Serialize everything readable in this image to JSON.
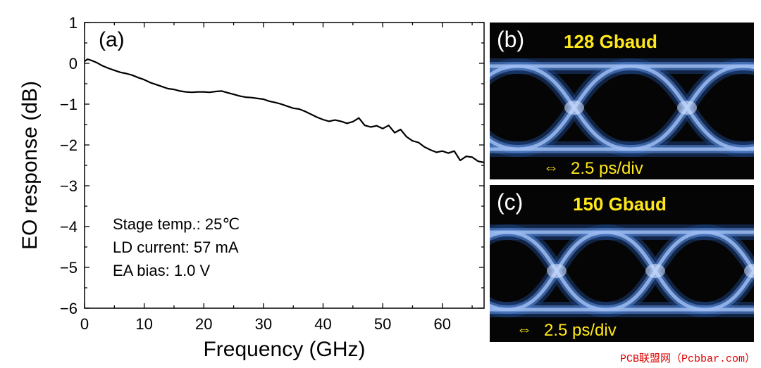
{
  "chart_data": {
    "type": "line",
    "panel_label": "(a)",
    "xlabel": "Frequency (GHz)",
    "ylabel": "EO response (dB)",
    "xlim": [
      0,
      67
    ],
    "ylim": [
      -6,
      1
    ],
    "xticks": [
      0,
      10,
      20,
      30,
      40,
      50,
      60
    ],
    "yticks": [
      1,
      0,
      -1,
      -2,
      -3,
      -4,
      -5,
      -6
    ],
    "ytick_labels": [
      "1",
      "0",
      "−1",
      "−2",
      "−3",
      "−4",
      "−5",
      "−6"
    ],
    "series": [
      {
        "name": "EO response",
        "x": [
          0,
          0.5,
          1,
          2,
          3,
          4,
          5,
          6,
          7,
          8,
          9,
          10,
          11,
          12,
          13,
          14,
          15,
          16,
          17,
          18,
          19,
          20,
          21,
          22,
          23,
          24,
          25,
          26,
          27,
          28,
          29,
          30,
          31,
          32,
          33,
          34,
          35,
          36,
          37,
          38,
          39,
          40,
          41,
          42,
          43,
          44,
          45,
          46,
          47,
          48,
          49,
          50,
          51,
          52,
          53,
          54,
          55,
          56,
          57,
          58,
          59,
          60,
          61,
          62,
          63,
          64,
          65,
          66,
          67
        ],
        "y": [
          0.05,
          0.1,
          0.08,
          0.02,
          -0.06,
          -0.12,
          -0.17,
          -0.22,
          -0.25,
          -0.29,
          -0.35,
          -0.4,
          -0.47,
          -0.52,
          -0.57,
          -0.62,
          -0.64,
          -0.68,
          -0.7,
          -0.71,
          -0.7,
          -0.7,
          -0.71,
          -0.69,
          -0.68,
          -0.72,
          -0.76,
          -0.8,
          -0.83,
          -0.84,
          -0.86,
          -0.88,
          -0.93,
          -0.96,
          -1.0,
          -1.05,
          -1.1,
          -1.12,
          -1.18,
          -1.25,
          -1.32,
          -1.38,
          -1.42,
          -1.39,
          -1.42,
          -1.47,
          -1.43,
          -1.34,
          -1.52,
          -1.56,
          -1.53,
          -1.6,
          -1.52,
          -1.7,
          -1.62,
          -1.8,
          -1.9,
          -1.94,
          -2.05,
          -2.12,
          -2.18,
          -2.15,
          -2.2,
          -2.15,
          -2.38,
          -2.28,
          -2.3,
          -2.4,
          -2.43
        ]
      }
    ],
    "annotations": [
      "Stage temp.: 25℃",
      "LD current: 57 mA",
      "EA bias: 1.0 V"
    ]
  },
  "eye_panels": [
    {
      "tag": "(b)",
      "title": "128 Gbaud",
      "scale": "2.5 ps/div"
    },
    {
      "tag": "(c)",
      "title": "150 Gbaud",
      "scale": "2.5 ps/div"
    }
  ],
  "watermark": "PCB联盟网（Pcbbar.com）",
  "colors": {
    "trace": "#000000",
    "eye": "#5f8fd0",
    "eye_glow": "#c6dbff",
    "label": "#ffe81a"
  }
}
